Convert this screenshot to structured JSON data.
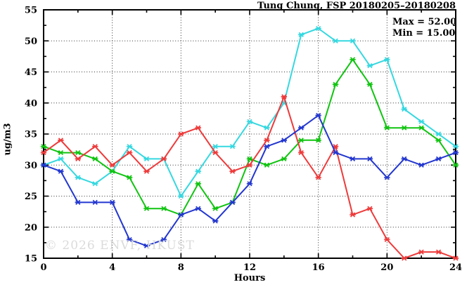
{
  "title": "Tung Chung, FSP 20180205–20180208",
  "legend": {
    "max_label": "Max = 52.00",
    "min_label": "Min = 15.00"
  },
  "watermark": "© 2026 ENVF, HKUST",
  "axis": {
    "y_label": "ug/m3",
    "x_label": "Hours"
  },
  "colors": {
    "frame": "#000000",
    "grid": "#333333",
    "red": "#ee3a3a",
    "green": "#10c410",
    "cyan": "#35d8e0",
    "blue": "#2337cf"
  },
  "chart_data": {
    "type": "line",
    "title": "Tung Chung, FSP 20180205–20180208",
    "xlabel": "Hours",
    "ylabel": "ug/m3",
    "xlim": [
      0,
      24
    ],
    "ylim": [
      15,
      55
    ],
    "x_major_ticks": [
      0,
      4,
      8,
      12,
      16,
      20,
      24
    ],
    "x_minor_ticks": [
      2,
      6,
      10,
      14,
      18,
      22
    ],
    "y_major_ticks": [
      15,
      20,
      25,
      30,
      35,
      40,
      45,
      50,
      55
    ],
    "y_minor_ticks": [
      17.5,
      22.5,
      27.5,
      32.5,
      37.5,
      42.5,
      47.5,
      52.5
    ],
    "grid": "dotted lines at major ticks, legend text top-right, no legend box",
    "marker": "asterisk",
    "x": [
      0,
      1,
      2,
      3,
      4,
      5,
      6,
      7,
      8,
      9,
      10,
      11,
      12,
      13,
      14,
      15,
      16,
      17,
      18,
      19,
      20,
      21,
      22,
      23,
      24
    ],
    "series": [
      {
        "name": "cyan",
        "color": "#35d8e0",
        "values": [
          30,
          31,
          28,
          27,
          29,
          33,
          31,
          31,
          25,
          29,
          33,
          33,
          37,
          36,
          40,
          51,
          52,
          50,
          50,
          46,
          47,
          39,
          37,
          35,
          33
        ]
      },
      {
        "name": "green",
        "color": "#10c410",
        "values": [
          33,
          32,
          32,
          31,
          29,
          28,
          23,
          23,
          22,
          27,
          23,
          24,
          31,
          30,
          31,
          34,
          34,
          43,
          47,
          43,
          36,
          36,
          36,
          34,
          30
        ]
      },
      {
        "name": "red",
        "color": "#ee3a3a",
        "values": [
          32,
          34,
          31,
          33,
          30,
          32,
          29,
          31,
          35,
          36,
          32,
          29,
          30,
          34,
          41,
          32,
          28,
          33,
          22,
          23,
          18,
          15,
          16,
          16,
          15
        ]
      },
      {
        "name": "blue",
        "color": "#2337cf",
        "values": [
          30,
          29,
          24,
          24,
          24,
          18,
          17,
          18,
          22,
          23,
          21,
          24,
          27,
          33,
          34,
          36,
          38,
          32,
          31,
          31,
          28,
          31,
          30,
          31,
          32
        ]
      }
    ],
    "stats": {
      "max": 52.0,
      "min": 15.0
    }
  }
}
